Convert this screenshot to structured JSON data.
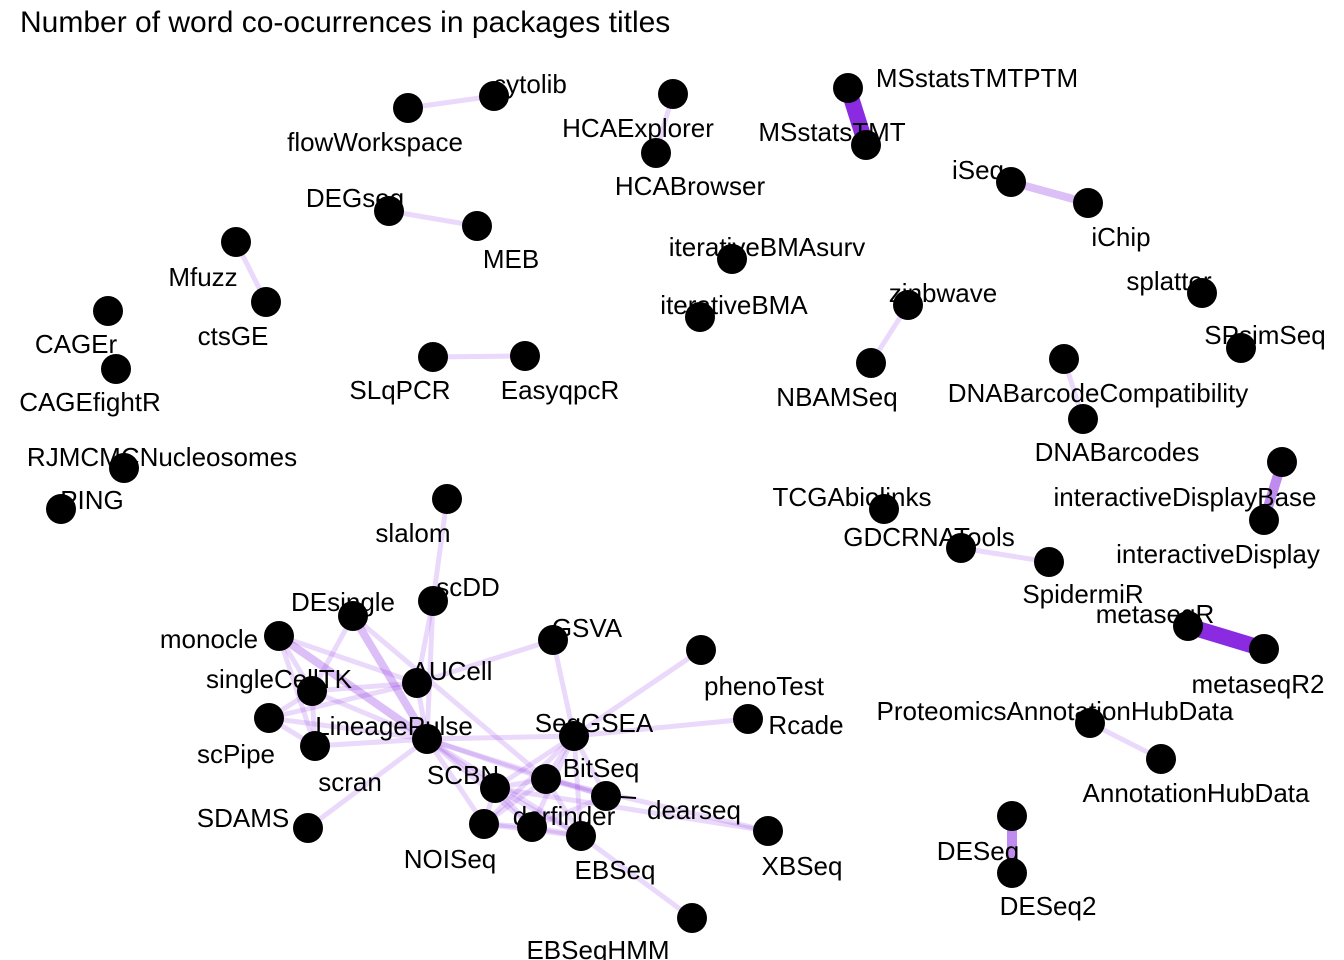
{
  "title": "Number of word co-ocurrences in packages titles",
  "colors": {
    "edge": "#8a2be2",
    "node": "#000000",
    "label": "#000000"
  },
  "nodes": [
    {
      "id": "cytolib"
    },
    {
      "id": "flowWorkspace"
    },
    {
      "id": "HCAExplorer"
    },
    {
      "id": "HCABrowser"
    },
    {
      "id": "MSstatsTMTPTM"
    },
    {
      "id": "MSstatsTMT"
    },
    {
      "id": "iSeq"
    },
    {
      "id": "iChip"
    },
    {
      "id": "DEGseq"
    },
    {
      "id": "MEB"
    },
    {
      "id": "Mfuzz"
    },
    {
      "id": "ctsGE"
    },
    {
      "id": "iterativeBMAsurv"
    },
    {
      "id": "iterativeBMA"
    },
    {
      "id": "zinbwave"
    },
    {
      "id": "NBAMSeq"
    },
    {
      "id": "splatter"
    },
    {
      "id": "SPsimSeq"
    },
    {
      "id": "CAGEr"
    },
    {
      "id": "CAGEfightR"
    },
    {
      "id": "SLqPCR"
    },
    {
      "id": "EasyqpcR"
    },
    {
      "id": "DNABarcodeCompatibility"
    },
    {
      "id": "DNABarcodes"
    },
    {
      "id": "RJMCMCNucleosomes"
    },
    {
      "id": "PING"
    },
    {
      "id": "interactiveDisplayBase"
    },
    {
      "id": "interactiveDisplay"
    },
    {
      "id": "TCGAbiolinks"
    },
    {
      "id": "GDCRNATools"
    },
    {
      "id": "SpidermiR"
    },
    {
      "id": "metaseqR"
    },
    {
      "id": "metaseqR2"
    },
    {
      "id": "ProteomicsAnnotationHubData"
    },
    {
      "id": "AnnotationHubData"
    },
    {
      "id": "DESeq"
    },
    {
      "id": "DESeq2"
    },
    {
      "id": "slalom"
    },
    {
      "id": "scDD"
    },
    {
      "id": "DEsingle"
    },
    {
      "id": "monocle"
    },
    {
      "id": "GSVA"
    },
    {
      "id": "AUCell"
    },
    {
      "id": "singleCellTK"
    },
    {
      "id": "phenoTest"
    },
    {
      "id": "LineagePulse"
    },
    {
      "id": "SeqGSEA"
    },
    {
      "id": "Rcade"
    },
    {
      "id": "scPipe"
    },
    {
      "id": "scran"
    },
    {
      "id": "BitSeq"
    },
    {
      "id": "SCBN"
    },
    {
      "id": "dearseq"
    },
    {
      "id": "derfinder"
    },
    {
      "id": "SDAMS"
    },
    {
      "id": "XBSeq"
    },
    {
      "id": "NOISeq"
    },
    {
      "id": "EBSeq"
    },
    {
      "id": "EBSeqHMM"
    }
  ],
  "edges": [
    {
      "source": "cytolib",
      "target": "flowWorkspace",
      "weight": 1
    },
    {
      "source": "HCAExplorer",
      "target": "HCABrowser",
      "weight": 1
    },
    {
      "source": "MSstatsTMTPTM",
      "target": "MSstatsTMT",
      "weight": 6
    },
    {
      "source": "iSeq",
      "target": "iChip",
      "weight": 2
    },
    {
      "source": "DEGseq",
      "target": "MEB",
      "weight": 1
    },
    {
      "source": "Mfuzz",
      "target": "ctsGE",
      "weight": 1
    },
    {
      "source": "zinbwave",
      "target": "NBAMSeq",
      "weight": 1
    },
    {
      "source": "SLqPCR",
      "target": "EasyqpcR",
      "weight": 1
    },
    {
      "source": "DNABarcodeCompatibility",
      "target": "DNABarcodes",
      "weight": 1
    },
    {
      "source": "interactiveDisplayBase",
      "target": "interactiveDisplay",
      "weight": 3
    },
    {
      "source": "GDCRNATools",
      "target": "SpidermiR",
      "weight": 1
    },
    {
      "source": "metaseqR",
      "target": "metaseqR2",
      "weight": 6
    },
    {
      "source": "ProteomicsAnnotationHubData",
      "target": "AnnotationHubData",
      "weight": 1
    },
    {
      "source": "DESeq",
      "target": "DESeq2",
      "weight": 3
    },
    {
      "source": "slalom",
      "target": "scDD",
      "weight": 1
    },
    {
      "source": "scDD",
      "target": "LineagePulse",
      "weight": 1
    },
    {
      "source": "scDD",
      "target": "AUCell",
      "weight": 1
    },
    {
      "source": "DEsingle",
      "target": "LineagePulse",
      "weight": 2
    },
    {
      "source": "DEsingle",
      "target": "singleCellTK",
      "weight": 1
    },
    {
      "source": "DEsingle",
      "target": "BitSeq",
      "weight": 1
    },
    {
      "source": "monocle",
      "target": "LineagePulse",
      "weight": 2
    },
    {
      "source": "monocle",
      "target": "AUCell",
      "weight": 1
    },
    {
      "source": "monocle",
      "target": "singleCellTK",
      "weight": 1
    },
    {
      "source": "monocle",
      "target": "scran",
      "weight": 1
    },
    {
      "source": "GSVA",
      "target": "SeqGSEA",
      "weight": 1
    },
    {
      "source": "AUCell",
      "target": "GSVA",
      "weight": 1
    },
    {
      "source": "AUCell",
      "target": "LineagePulse",
      "weight": 1
    },
    {
      "source": "singleCellTK",
      "target": "LineagePulse",
      "weight": 1
    },
    {
      "source": "singleCellTK",
      "target": "scPipe",
      "weight": 1
    },
    {
      "source": "singleCellTK",
      "target": "scran",
      "weight": 1
    },
    {
      "source": "singleCellTK",
      "target": "AUCell",
      "weight": 1
    },
    {
      "source": "scPipe",
      "target": "LineagePulse",
      "weight": 1
    },
    {
      "source": "scPipe",
      "target": "scran",
      "weight": 1
    },
    {
      "source": "scPipe",
      "target": "AUCell",
      "weight": 1
    },
    {
      "source": "scran",
      "target": "LineagePulse",
      "weight": 1
    },
    {
      "source": "phenoTest",
      "target": "SeqGSEA",
      "weight": 1
    },
    {
      "source": "LineagePulse",
      "target": "SeqGSEA",
      "weight": 1
    },
    {
      "source": "LineagePulse",
      "target": "SCBN",
      "weight": 1
    },
    {
      "source": "LineagePulse",
      "target": "BitSeq",
      "weight": 1
    },
    {
      "source": "LineagePulse",
      "target": "derfinder",
      "weight": 1
    },
    {
      "source": "LineagePulse",
      "target": "dearseq",
      "weight": 1
    },
    {
      "source": "LineagePulse",
      "target": "NOISeq",
      "weight": 1
    },
    {
      "source": "LineagePulse",
      "target": "EBSeq",
      "weight": 1
    },
    {
      "source": "LineagePulse",
      "target": "SDAMS",
      "weight": 1
    },
    {
      "source": "SeqGSEA",
      "target": "Rcade",
      "weight": 1
    },
    {
      "source": "SeqGSEA",
      "target": "SCBN",
      "weight": 1
    },
    {
      "source": "SeqGSEA",
      "target": "BitSeq",
      "weight": 1
    },
    {
      "source": "SeqGSEA",
      "target": "derfinder",
      "weight": 1
    },
    {
      "source": "SeqGSEA",
      "target": "EBSeq",
      "weight": 1
    },
    {
      "source": "SeqGSEA",
      "target": "NOISeq",
      "weight": 1
    },
    {
      "source": "SeqGSEA",
      "target": "dearseq",
      "weight": 1
    },
    {
      "source": "SCBN",
      "target": "BitSeq",
      "weight": 1
    },
    {
      "source": "SCBN",
      "target": "derfinder",
      "weight": 1
    },
    {
      "source": "SCBN",
      "target": "EBSeq",
      "weight": 1
    },
    {
      "source": "SCBN",
      "target": "XBSeq",
      "weight": 1
    },
    {
      "source": "SCBN",
      "target": "NOISeq",
      "weight": 1
    },
    {
      "source": "BitSeq",
      "target": "XBSeq",
      "weight": 1
    },
    {
      "source": "BitSeq",
      "target": "EBSeq",
      "weight": 1
    },
    {
      "source": "BitSeq",
      "target": "NOISeq",
      "weight": 1
    },
    {
      "source": "BitSeq",
      "target": "dearseq",
      "weight": 1
    },
    {
      "source": "dearseq",
      "target": "derfinder",
      "weight": 1
    },
    {
      "source": "derfinder",
      "target": "EBSeq",
      "weight": 1
    },
    {
      "source": "derfinder",
      "target": "NOISeq",
      "weight": 1
    },
    {
      "source": "EBSeq",
      "target": "EBSeqHMM",
      "weight": 1
    },
    {
      "source": "EBSeq",
      "target": "NOISeq",
      "weight": 1
    }
  ]
}
